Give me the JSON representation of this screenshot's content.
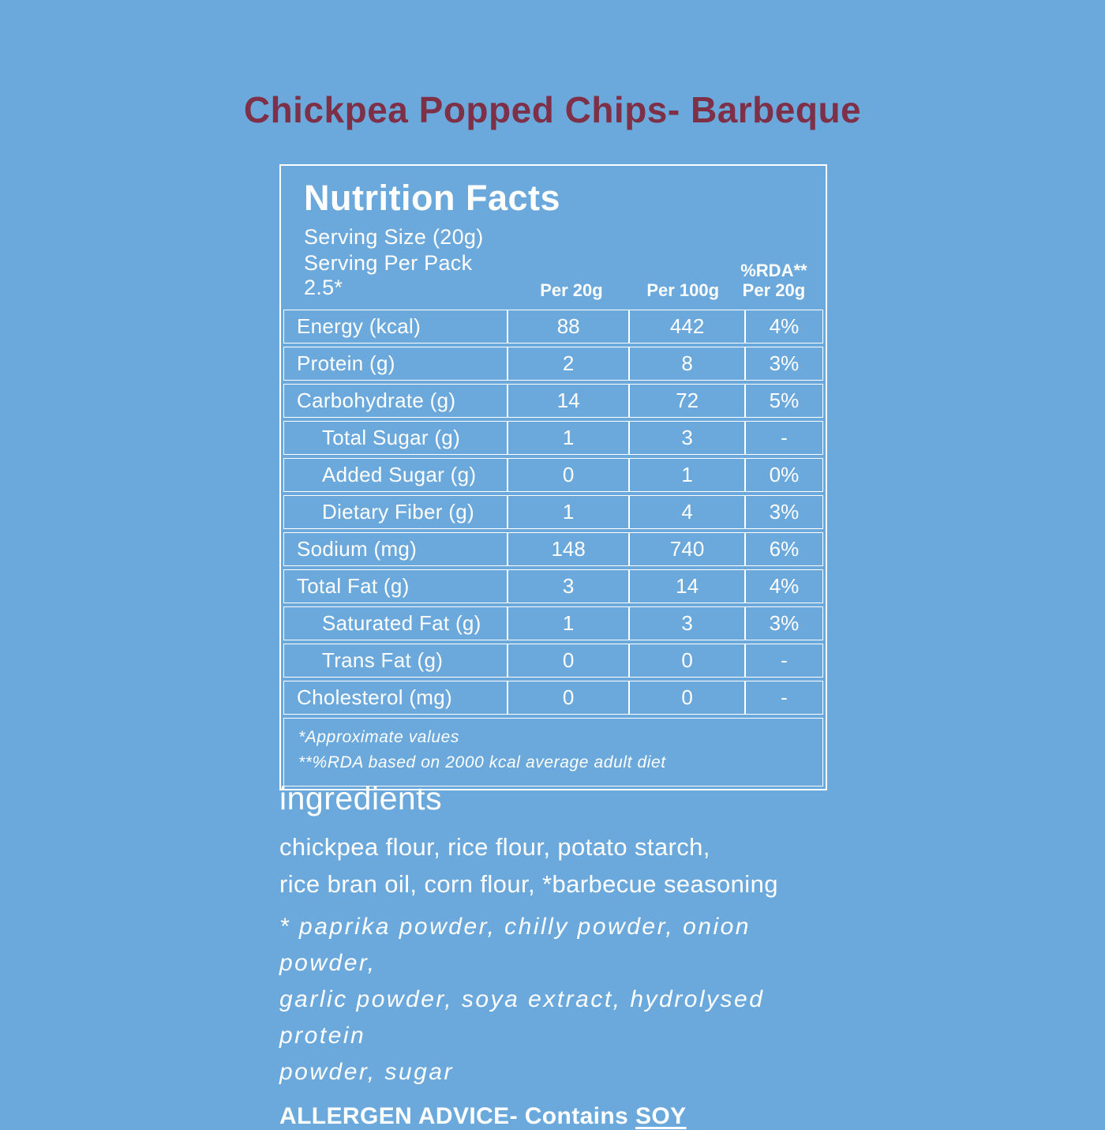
{
  "page": {
    "colors": {
      "background": "#6BA9DC",
      "text": "#FFFFFF",
      "title": "#7D3047"
    }
  },
  "title": "Chickpea Popped Chips- Barbeque",
  "nutrition": {
    "heading": "Nutrition Facts",
    "serving_size": "Serving Size (20g)",
    "serving_per_pack": "Serving Per Pack 2.5*",
    "columns": {
      "per20": "Per 20g",
      "per100": "Per 100g",
      "rda_line1": "%RDA**",
      "rda_line2": "Per 20g"
    },
    "rows": [
      {
        "label": "Energy (kcal)",
        "indent": false,
        "per20": "88",
        "per100": "442",
        "rda": "4%"
      },
      {
        "label": "Protein (g)",
        "indent": false,
        "per20": "2",
        "per100": "8",
        "rda": "3%"
      },
      {
        "label": "Carbohydrate (g)",
        "indent": false,
        "per20": "14",
        "per100": "72",
        "rda": "5%"
      },
      {
        "label": "Total Sugar (g)",
        "indent": true,
        "per20": "1",
        "per100": "3",
        "rda": "-"
      },
      {
        "label": "Added Sugar (g)",
        "indent": true,
        "per20": "0",
        "per100": "1",
        "rda": "0%"
      },
      {
        "label": "Dietary Fiber (g)",
        "indent": true,
        "per20": "1",
        "per100": "4",
        "rda": "3%"
      },
      {
        "label": "Sodium (mg)",
        "indent": false,
        "per20": "148",
        "per100": "740",
        "rda": "6%"
      },
      {
        "label": "Total Fat (g)",
        "indent": false,
        "per20": "3",
        "per100": "14",
        "rda": "4%"
      },
      {
        "label": "Saturated Fat (g)",
        "indent": true,
        "per20": "1",
        "per100": "3",
        "rda": "3%"
      },
      {
        "label": "Trans Fat (g)",
        "indent": true,
        "per20": "0",
        "per100": "0",
        "rda": "-"
      },
      {
        "label": "Cholesterol (mg)",
        "indent": false,
        "per20": "0",
        "per100": "0",
        "rda": "-"
      }
    ],
    "footnotes": [
      "*Approximate values",
      "**%RDA based on 2000 kcal average adult diet"
    ]
  },
  "ingredients": {
    "heading": "ingredients",
    "lines": [
      "chickpea flour, rice flour, potato starch,",
      "rice bran oil, corn flour, *barbecue seasoning"
    ],
    "seasoning_lines": [
      "* paprika powder, chilly powder, onion powder,",
      "garlic powder, soya extract, hydrolysed protein",
      "powder, sugar"
    ]
  },
  "allergen": {
    "prefix": "ALLERGEN ADVICE- Contains ",
    "emphasis": "SOY"
  }
}
